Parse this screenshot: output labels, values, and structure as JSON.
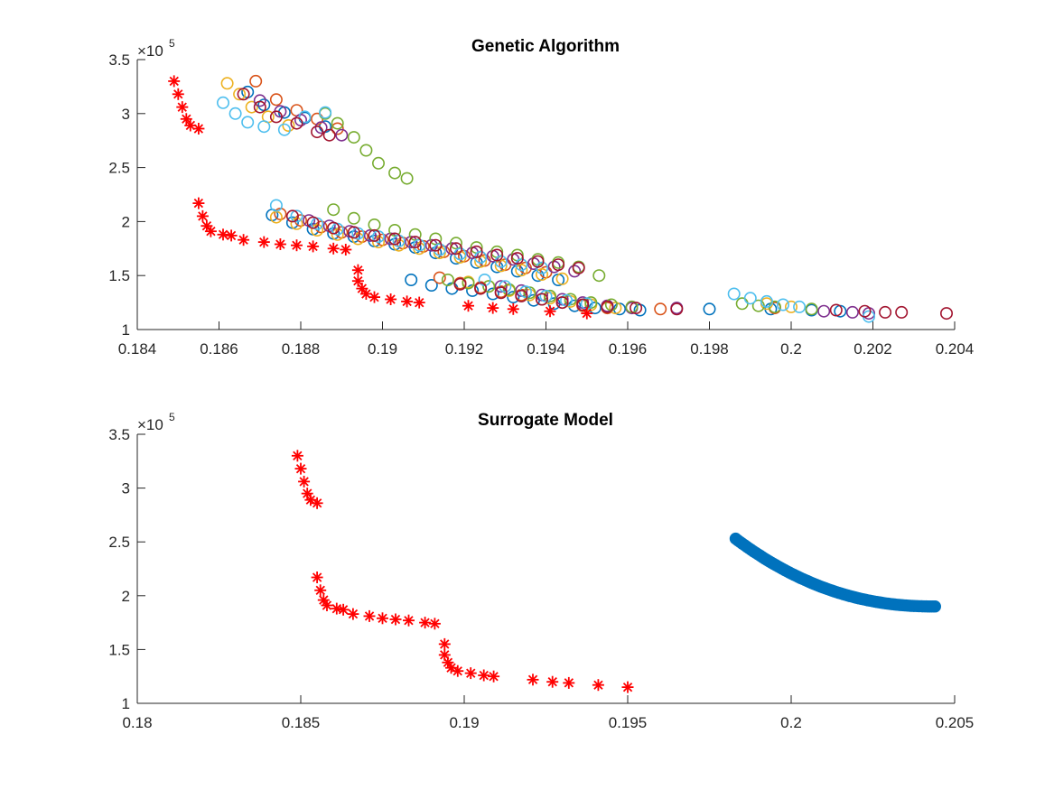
{
  "figure": {
    "background": "#ffffff"
  },
  "chart_data": [
    {
      "type": "scatter",
      "title": "Genetic Algorithm",
      "xlabel": "",
      "ylabel": "",
      "xlim": [
        0.184,
        0.204
      ],
      "ylim": [
        100000,
        350000
      ],
      "x_ticks": [
        0.184,
        0.186,
        0.188,
        0.19,
        0.192,
        0.194,
        0.196,
        0.198,
        0.2,
        0.202,
        0.204
      ],
      "x_tick_labels": [
        "0.184",
        "0.186",
        "0.188",
        "0.19",
        "0.192",
        "0.194",
        "0.196",
        "0.198",
        "0.2",
        "0.202",
        "0.204"
      ],
      "y_ticks": [
        100000,
        150000,
        200000,
        250000,
        300000,
        350000
      ],
      "y_tick_labels": [
        "1",
        "1.5",
        "2",
        "2.5",
        "3",
        "3.5"
      ],
      "y_exponent_base": "×10",
      "y_exponent_power": "5",
      "grid": false,
      "series": [
        {
          "marker": "circle-open",
          "color": "#0072BD",
          "x": [
            0.1867,
            0.1871,
            0.1876,
            0.1881,
            0.1886,
            0.1873,
            0.1878,
            0.1883,
            0.1888,
            0.1893,
            0.1898,
            0.1903,
            0.1908,
            0.1913,
            0.1918,
            0.1923,
            0.1928,
            0.1933,
            0.1938,
            0.1943,
            0.1907,
            0.1912,
            0.1917,
            0.1922,
            0.1927,
            0.1932,
            0.1937,
            0.1942,
            0.1947,
            0.1952,
            0.1958,
            0.1963,
            0.198,
            0.1995,
            0.2005,
            0.2012
          ],
          "y": [
            320000,
            308000,
            301000,
            296000,
            288000,
            206000,
            199000,
            193000,
            189000,
            186000,
            182000,
            179000,
            176000,
            171000,
            166000,
            162000,
            158000,
            154000,
            150000,
            146000,
            146000,
            141000,
            138000,
            136000,
            133000,
            130000,
            127000,
            124000,
            122000,
            120000,
            119000,
            118000,
            119000,
            119000,
            118000,
            117000
          ]
        },
        {
          "marker": "circle-open",
          "color": "#D95319",
          "x": [
            0.1869,
            0.1874,
            0.1879,
            0.1884,
            0.1889,
            0.1875,
            0.188,
            0.1885,
            0.189,
            0.1895,
            0.19,
            0.1905,
            0.191,
            0.1915,
            0.192,
            0.1925,
            0.193,
            0.1935,
            0.194,
            0.1914,
            0.1919,
            0.1924,
            0.1929,
            0.1934,
            0.1939,
            0.1944,
            0.1949,
            0.1955,
            0.1968,
            0.1996
          ],
          "y": [
            330000,
            313000,
            303000,
            295000,
            286000,
            207000,
            201000,
            195000,
            190000,
            186000,
            183000,
            180000,
            177000,
            172000,
            168000,
            164000,
            160000,
            157000,
            153000,
            148000,
            143000,
            139000,
            135000,
            132000,
            128000,
            125000,
            122000,
            120000,
            119000,
            120000
          ]
        },
        {
          "marker": "circle-open",
          "color": "#EDB120",
          "x": [
            0.1862,
            0.1865,
            0.1868,
            0.1872,
            0.1877,
            0.1874,
            0.1879,
            0.1884,
            0.1889,
            0.1894,
            0.1899,
            0.1904,
            0.1909,
            0.1914,
            0.1919,
            0.1924,
            0.1929,
            0.1934,
            0.1939,
            0.1944,
            0.1921,
            0.1926,
            0.1931,
            0.1936,
            0.1941,
            0.1946,
            0.1951,
            0.1957,
            0.1994,
            0.2
          ],
          "y": [
            328000,
            318000,
            306000,
            297000,
            289000,
            204000,
            198000,
            192000,
            188000,
            184000,
            181000,
            178000,
            175000,
            171000,
            167000,
            163000,
            159000,
            155000,
            151000,
            147000,
            144000,
            140000,
            136000,
            132000,
            129000,
            126000,
            123000,
            120000,
            124000,
            121000
          ]
        },
        {
          "marker": "circle-open",
          "color": "#7E2F8E",
          "x": [
            0.187,
            0.1875,
            0.188,
            0.1885,
            0.189,
            0.1882,
            0.1887,
            0.1892,
            0.1897,
            0.1902,
            0.1907,
            0.1912,
            0.1917,
            0.1922,
            0.1927,
            0.1932,
            0.1937,
            0.1942,
            0.1947,
            0.1929,
            0.1934,
            0.1939,
            0.1944,
            0.1949,
            0.1955,
            0.1961,
            0.1972,
            0.2008,
            0.2015,
            0.2019
          ],
          "y": [
            312000,
            302000,
            294000,
            287000,
            280000,
            201000,
            196000,
            191000,
            187000,
            184000,
            181000,
            178000,
            175000,
            171000,
            168000,
            165000,
            161000,
            158000,
            154000,
            140000,
            136000,
            132000,
            128000,
            125000,
            122000,
            120000,
            120000,
            117000,
            116000,
            115000
          ]
        },
        {
          "marker": "circle-open",
          "color": "#77AC30",
          "x": [
            0.1886,
            0.1889,
            0.1893,
            0.1896,
            0.1899,
            0.1903,
            0.1906,
            0.1888,
            0.1893,
            0.1898,
            0.1903,
            0.1908,
            0.1913,
            0.1918,
            0.1923,
            0.1928,
            0.1933,
            0.1938,
            0.1943,
            0.1948,
            0.1953,
            0.1916,
            0.1921,
            0.1926,
            0.1931,
            0.1936,
            0.1941,
            0.1946,
            0.1951,
            0.1956,
            0.1961,
            0.1988,
            0.1992,
            0.1996,
            0.2005
          ],
          "y": [
            300000,
            291000,
            278000,
            266000,
            254000,
            245000,
            240000,
            211000,
            203000,
            197000,
            192000,
            188000,
            184000,
            180000,
            176000,
            172000,
            169000,
            165000,
            162000,
            158000,
            150000,
            146000,
            143000,
            140000,
            137000,
            134000,
            131000,
            128000,
            125000,
            123000,
            121000,
            124000,
            122000,
            121000,
            119000
          ]
        },
        {
          "marker": "circle-open",
          "color": "#4DBEEE",
          "x": [
            0.1861,
            0.1864,
            0.1867,
            0.1871,
            0.1876,
            0.1881,
            0.1886,
            0.1874,
            0.1879,
            0.1884,
            0.1889,
            0.1894,
            0.1899,
            0.1904,
            0.1909,
            0.1914,
            0.1919,
            0.1924,
            0.1929,
            0.1934,
            0.1939,
            0.1925,
            0.193,
            0.1935,
            0.194,
            0.1945,
            0.195,
            0.1986,
            0.199,
            0.1994,
            0.1998,
            0.2002,
            0.2019
          ],
          "y": [
            310000,
            300000,
            292000,
            288000,
            285000,
            297000,
            301000,
            215000,
            205000,
            198000,
            193000,
            189000,
            186000,
            182000,
            178000,
            174000,
            170000,
            167000,
            163000,
            160000,
            157000,
            146000,
            140000,
            135000,
            131000,
            127000,
            124000,
            133000,
            129000,
            126000,
            123000,
            121000,
            112000
          ]
        },
        {
          "marker": "circle-open",
          "color": "#A2142F",
          "x": [
            0.1866,
            0.187,
            0.1874,
            0.1879,
            0.1884,
            0.1887,
            0.1878,
            0.1883,
            0.1888,
            0.1893,
            0.1898,
            0.1903,
            0.1908,
            0.1913,
            0.1918,
            0.1923,
            0.1928,
            0.1933,
            0.1938,
            0.1943,
            0.1948,
            0.1919,
            0.1924,
            0.1929,
            0.1934,
            0.1939,
            0.1944,
            0.1949,
            0.1955,
            0.1962,
            0.1972,
            0.2011,
            0.2018,
            0.2023,
            0.2027,
            0.2038
          ],
          "y": [
            318000,
            306000,
            297000,
            291000,
            283000,
            280000,
            205000,
            199000,
            194000,
            190000,
            187000,
            184000,
            181000,
            178000,
            175000,
            172000,
            169000,
            166000,
            163000,
            160000,
            157000,
            142000,
            138000,
            134000,
            131000,
            128000,
            125000,
            123000,
            121000,
            120000,
            119000,
            118000,
            117000,
            116000,
            116000,
            115000
          ]
        },
        {
          "marker": "asterisk",
          "color": "#FF0000",
          "x": [
            0.1849,
            0.185,
            0.1851,
            0.1852,
            0.1853,
            0.1855,
            0.1855,
            0.1856,
            0.1857,
            0.1858,
            0.1861,
            0.1863,
            0.1866,
            0.1871,
            0.1875,
            0.1879,
            0.1883,
            0.1888,
            0.1891,
            0.1894,
            0.1894,
            0.1895,
            0.1896,
            0.1898,
            0.1902,
            0.1906,
            0.1909,
            0.1921,
            0.1927,
            0.1932,
            0.1941,
            0.195
          ],
          "y": [
            330000,
            318000,
            306000,
            295000,
            289000,
            286000,
            217000,
            205000,
            196000,
            191000,
            188000,
            187000,
            183000,
            181000,
            179000,
            178000,
            177000,
            175000,
            174000,
            155000,
            145000,
            138000,
            133000,
            130000,
            128000,
            126000,
            125000,
            122000,
            120000,
            119000,
            117000,
            115000
          ]
        }
      ]
    },
    {
      "type": "scatter",
      "title": "Surrogate Model",
      "xlabel": "",
      "ylabel": "",
      "xlim": [
        0.18,
        0.205
      ],
      "ylim": [
        100000,
        350000
      ],
      "x_ticks": [
        0.18,
        0.185,
        0.19,
        0.195,
        0.2,
        0.205
      ],
      "x_tick_labels": [
        "0.18",
        "0.185",
        "0.19",
        "0.195",
        "0.2",
        "0.205"
      ],
      "y_ticks": [
        100000,
        150000,
        200000,
        250000,
        300000,
        350000
      ],
      "y_tick_labels": [
        "1",
        "1.5",
        "2",
        "2.5",
        "3",
        "3.5"
      ],
      "y_exponent_base": "×10",
      "y_exponent_power": "5",
      "grid": false,
      "series": [
        {
          "marker": "circle-filled",
          "color": "#0072BD",
          "curve": {
            "x_start": 0.1983,
            "x_end": 0.2044,
            "y_start": 253000,
            "y_end": 190000,
            "points": 90
          }
        },
        {
          "marker": "asterisk",
          "color": "#FF0000",
          "x": [
            0.1849,
            0.185,
            0.1851,
            0.1852,
            0.1853,
            0.1855,
            0.1855,
            0.1856,
            0.1857,
            0.1858,
            0.1861,
            0.1863,
            0.1866,
            0.1871,
            0.1875,
            0.1879,
            0.1883,
            0.1888,
            0.1891,
            0.1894,
            0.1894,
            0.1895,
            0.1896,
            0.1898,
            0.1902,
            0.1906,
            0.1909,
            0.1921,
            0.1927,
            0.1932,
            0.1941,
            0.195
          ],
          "y": [
            330000,
            318000,
            306000,
            295000,
            289000,
            286000,
            217000,
            205000,
            196000,
            191000,
            188000,
            187000,
            183000,
            181000,
            179000,
            178000,
            177000,
            175000,
            174000,
            155000,
            145000,
            138000,
            133000,
            130000,
            128000,
            126000,
            125000,
            122000,
            120000,
            119000,
            117000,
            115000
          ]
        }
      ]
    }
  ]
}
